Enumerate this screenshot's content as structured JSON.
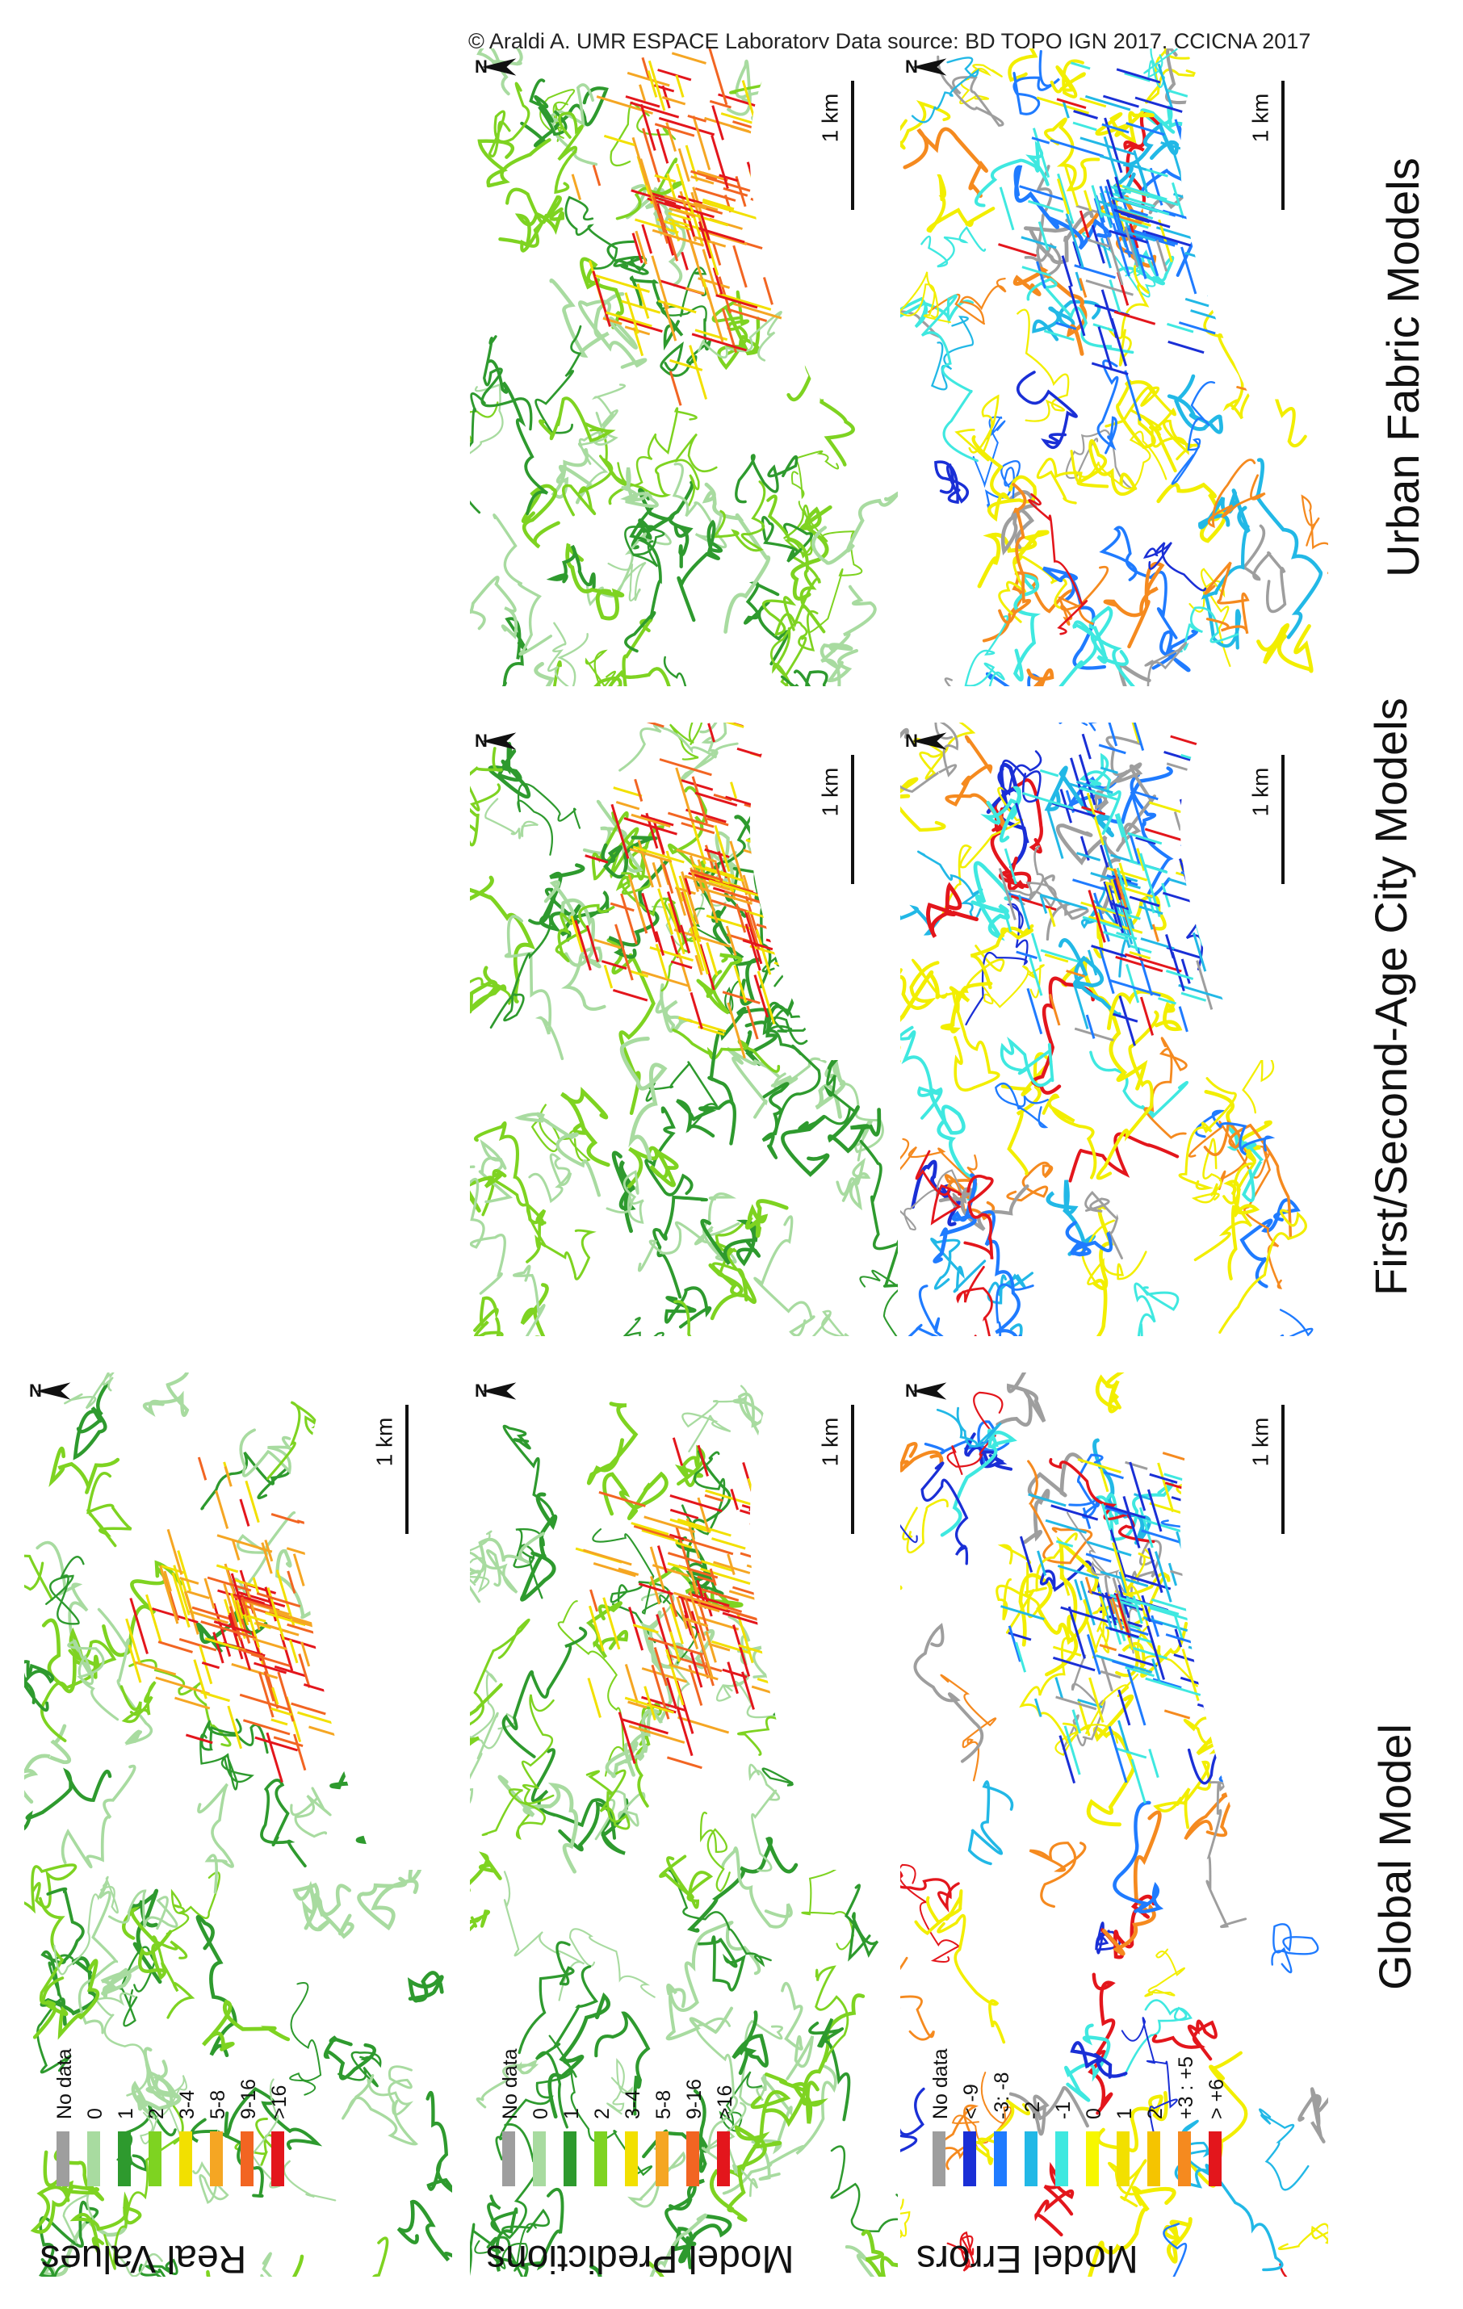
{
  "credit": "© Araldi A.  UMR ESPACE Laboratory Data source: BD TOPO IGN 2017, CCICNA 2017",
  "columns": [
    {
      "title": "Global Model"
    },
    {
      "title": "First/Second-Age City Models"
    },
    {
      "title": "Urban Fabric Models"
    }
  ],
  "map_labels": {
    "north": "N",
    "scale": "1 km"
  },
  "legends": [
    {
      "title": "Real Values",
      "classes": [
        {
          "label": "No data",
          "color": "#9e9e9e"
        },
        {
          "label": "0",
          "color": "#a8dba0"
        },
        {
          "label": "1",
          "color": "#2e9a2e"
        },
        {
          "label": "2",
          "color": "#7ed321"
        },
        {
          "label": "3-4",
          "color": "#f2e000"
        },
        {
          "label": "5-8",
          "color": "#f5a623"
        },
        {
          "label": "9-16",
          "color": "#f26522"
        },
        {
          "label": ">16",
          "color": "#e3161c"
        }
      ]
    },
    {
      "title": "Model Predictions",
      "classes": [
        {
          "label": "No data",
          "color": "#9e9e9e"
        },
        {
          "label": "0",
          "color": "#a8dba0"
        },
        {
          "label": "1",
          "color": "#2e9a2e"
        },
        {
          "label": "2",
          "color": "#7ed321"
        },
        {
          "label": "3-4",
          "color": "#f2e000"
        },
        {
          "label": "5-8",
          "color": "#f5a623"
        },
        {
          "label": "9-16",
          "color": "#f26522"
        },
        {
          "label": ">16",
          "color": "#e3161c"
        }
      ]
    },
    {
      "title": "Model Errors",
      "classes": [
        {
          "label": "No data",
          "color": "#9e9e9e"
        },
        {
          "label": "< -9",
          "color": "#1a2fd6"
        },
        {
          "label": "-3: -8",
          "color": "#1f7bff"
        },
        {
          "label": "-2",
          "color": "#22b8e6"
        },
        {
          "label": "-1",
          "color": "#3fe8e0"
        },
        {
          "label": "0",
          "color": "#f7f700"
        },
        {
          "label": "1",
          "color": "#f2e000"
        },
        {
          "label": "2",
          "color": "#f5c400"
        },
        {
          "label": "+3 : +5",
          "color": "#f58a1f"
        },
        {
          "label": "> +6",
          "color": "#e3161c"
        }
      ]
    }
  ],
  "palette": {
    "values": [
      "#a8dba0",
      "#2e9a2e",
      "#7ed321",
      "#f2e000",
      "#f5a623",
      "#f26522",
      "#e3161c",
      "#9e9e9e"
    ],
    "errors": [
      "#f2ee00",
      "#f2ee00",
      "#f2ee00",
      "#3fe8e0",
      "#22b8e6",
      "#1f7bff",
      "#1a2fd6",
      "#f58a1f",
      "#e3161c",
      "#9e9e9e"
    ]
  }
}
